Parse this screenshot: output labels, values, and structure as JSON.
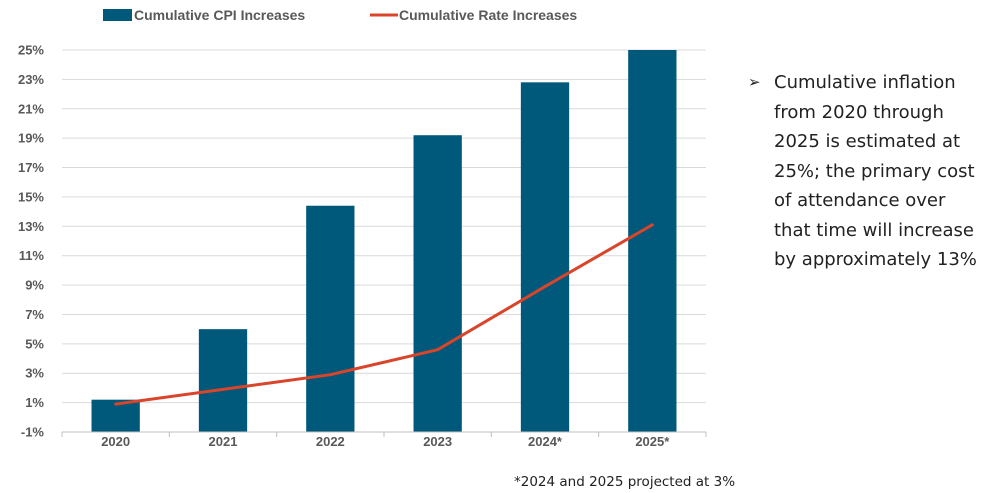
{
  "chart_data": {
    "type": "bar",
    "categories": [
      "2020",
      "2021",
      "2022",
      "2023",
      "2024*",
      "2025*"
    ],
    "series": [
      {
        "name": "Cumulative CPI Increases",
        "kind": "bar",
        "color": "#00587A",
        "values": [
          1.2,
          6.0,
          14.4,
          19.2,
          22.8,
          25.0
        ]
      },
      {
        "name": "Cumulative Rate Increases",
        "kind": "line",
        "color": "#D9452B",
        "values": [
          0.9,
          1.9,
          2.9,
          4.6,
          8.9,
          13.1
        ]
      }
    ],
    "yticks": [
      25,
      23,
      21,
      19,
      17,
      15,
      13,
      11,
      9,
      7,
      5,
      3,
      1,
      -1
    ],
    "ytick_labels": [
      "25%",
      "23%",
      "21%",
      "19%",
      "17%",
      "15%",
      "13%",
      "11%",
      "9%",
      "7%",
      "5%",
      "3%",
      "1%",
      "-1%"
    ],
    "ylim": [
      -1,
      25
    ],
    "grid": true,
    "legend_position": "top"
  },
  "legend": {
    "cpi_label": "Cumulative CPI Increases",
    "rate_label": "Cumulative Rate Increases"
  },
  "bullet": {
    "arrow": "➢",
    "text": "Cumulative inflation from 2020 through 2025 is estimated at 25%; the primary cost of attendance over that time will increase by approximately 13%"
  },
  "footnote": "*2024 and 2025 projected at 3%"
}
